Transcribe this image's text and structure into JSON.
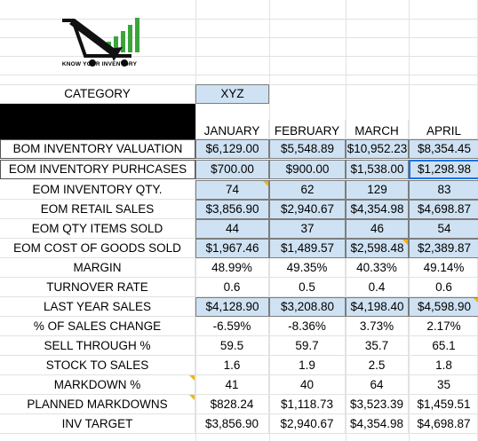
{
  "logo": {
    "text": "KNOW YOUR INVENTORY"
  },
  "category": {
    "label": "CATEGORY",
    "value": "XYZ"
  },
  "months": [
    "JANUARY",
    "FEBRUARY",
    "MARCH",
    "APRIL"
  ],
  "rows": [
    {
      "label": "BOM INVENTORY VALUATION",
      "values": [
        "$6,129.00",
        "$5,548.89",
        "$10,952.23",
        "$8,354.45"
      ]
    },
    {
      "label": "EOM INVENTORY PURHCASES",
      "values": [
        "$700.00",
        "$900.00",
        "$1,538.00",
        "$1,298.98"
      ]
    },
    {
      "label": "EOM INVENTORY QTY.",
      "values": [
        "74",
        "62",
        "129",
        "83"
      ]
    },
    {
      "label": "EOM RETAIL SALES",
      "values": [
        "$3,856.90",
        "$2,940.67",
        "$4,354.98",
        "$4,698.87"
      ]
    },
    {
      "label": "EOM QTY ITEMS SOLD",
      "values": [
        "44",
        "37",
        "46",
        "54"
      ]
    },
    {
      "label": "EOM COST OF GOODS SOLD",
      "values": [
        "$1,967.46",
        "$1,489.57",
        "$2,598.48",
        "$2,389.87"
      ]
    },
    {
      "label": "MARGIN",
      "values": [
        "48.99%",
        "49.35%",
        "40.33%",
        "49.14%"
      ]
    },
    {
      "label": "TURNOVER RATE",
      "values": [
        "0.6",
        "0.5",
        "0.4",
        "0.6"
      ]
    },
    {
      "label": "LAST YEAR SALES",
      "values": [
        "$4,128.90",
        "$3,208.80",
        "$4,198.40",
        "$4,598.90"
      ]
    },
    {
      "label": "% OF SALES CHANGE",
      "values": [
        "-6.59%",
        "-8.36%",
        "3.73%",
        "2.17%"
      ]
    },
    {
      "label": "SELL THROUGH %",
      "values": [
        "59.5",
        "59.7",
        "35.7",
        "65.1"
      ]
    },
    {
      "label": "STOCK TO SALES",
      "values": [
        "1.6",
        "1.9",
        "2.5",
        "1.8"
      ]
    },
    {
      "label": "MARKDOWN %",
      "values": [
        "41",
        "40",
        "64",
        "35"
      ]
    },
    {
      "label": "PLANNED MARKDOWNS",
      "values": [
        "$828.24",
        "$1,118.73",
        "$3,523.39",
        "$1,459.51"
      ]
    },
    {
      "label": "INV TARGET",
      "values": [
        "$3,856.90",
        "$2,940.67",
        "$4,354.98",
        "$4,698.87"
      ]
    }
  ],
  "colors": {
    "input_fill": "#cfe2f3",
    "comment_marker": "#f4b400",
    "selection": "#1a73e8",
    "logo_green": "#3aa53a"
  }
}
